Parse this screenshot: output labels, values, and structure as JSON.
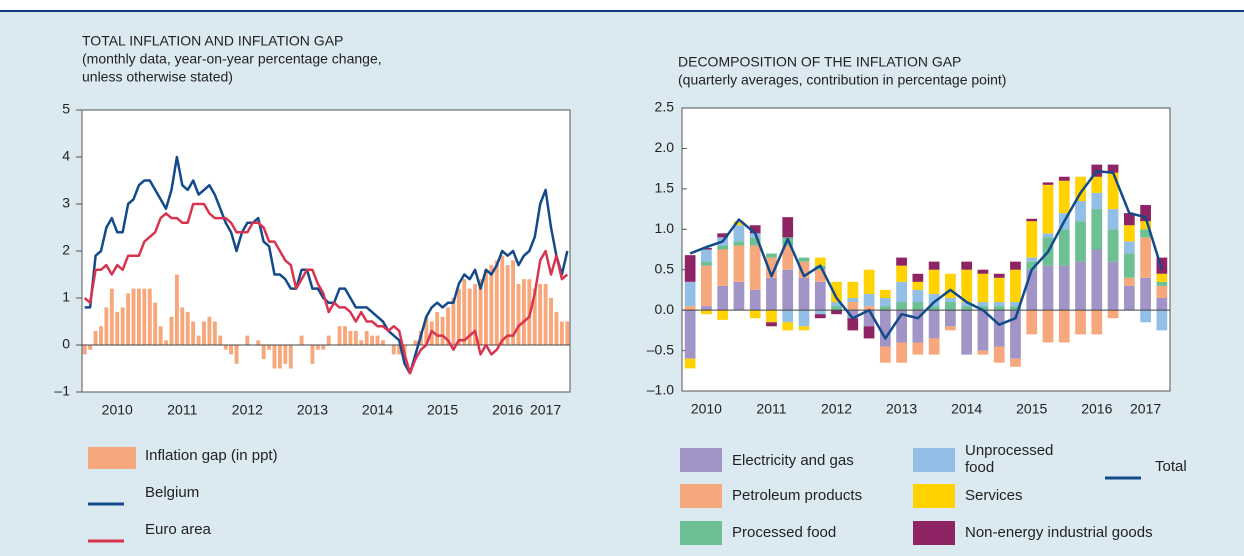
{
  "chart_data": [
    {
      "type": "combo",
      "title": "TOTAL INFLATION AND INFLATION GAP",
      "subtitle": [
        "(monthly data, year-on-year percentage change,",
        "unless otherwise stated)"
      ],
      "categories": [
        null,
        null,
        null,
        null,
        null,
        null,
        "2010",
        null,
        null,
        null,
        null,
        null,
        null,
        null,
        null,
        null,
        null,
        null,
        "2011",
        null,
        null,
        null,
        null,
        null,
        null,
        null,
        null,
        null,
        null,
        null,
        "2012",
        null,
        null,
        null,
        null,
        null,
        null,
        null,
        null,
        null,
        null,
        null,
        "2013",
        null,
        null,
        null,
        null,
        null,
        null,
        null,
        null,
        null,
        null,
        null,
        "2014",
        null,
        null,
        null,
        null,
        null,
        null,
        null,
        null,
        null,
        null,
        null,
        "2015",
        null,
        null,
        null,
        null,
        null,
        null,
        null,
        null,
        null,
        null,
        null,
        "2016",
        null,
        null,
        null,
        null,
        null,
        null,
        "2017",
        null,
        null,
        null,
        null
      ],
      "ylim": [
        -1,
        5
      ],
      "yticks": [
        {
          "value": -1,
          "label": "–1"
        },
        0,
        1,
        2,
        3,
        4,
        5
      ],
      "series": [
        {
          "name": "Inflation gap (in ppt)",
          "kind": "bar",
          "color": "#f7a77c",
          "values": [
            -0.2,
            -0.1,
            0.3,
            0.4,
            0.8,
            1.2,
            0.7,
            0.8,
            1.1,
            1.2,
            1.2,
            1.2,
            1.2,
            0.9,
            0.4,
            0.1,
            0.6,
            1.5,
            0.8,
            0.7,
            0.5,
            0.2,
            0.5,
            0.6,
            0.5,
            0.2,
            -0.1,
            -0.2,
            -0.4,
            0.0,
            0.2,
            0.0,
            0.1,
            -0.3,
            -0.1,
            -0.5,
            -0.5,
            -0.4,
            -0.5,
            0.0,
            0.2,
            0.0,
            -0.4,
            -0.1,
            -0.1,
            0.2,
            0.0,
            0.4,
            0.4,
            0.3,
            0.3,
            0.1,
            0.3,
            0.2,
            0.2,
            0.1,
            0.0,
            -0.2,
            -0.2,
            -0.2,
            0.0,
            0.1,
            0.3,
            0.6,
            0.5,
            0.7,
            0.6,
            0.8,
            1.0,
            1.2,
            1.4,
            1.2,
            1.3,
            1.4,
            1.6,
            1.7,
            1.8,
            1.9,
            1.7,
            1.8,
            1.3,
            1.4,
            1.4,
            1.2,
            1.3,
            1.3,
            1.0,
            0.7,
            0.5,
            0.5
          ]
        },
        {
          "name": "Belgium",
          "kind": "line",
          "color": "#124a8a",
          "values": [
            0.8,
            0.8,
            1.9,
            2.0,
            2.5,
            2.7,
            2.4,
            2.4,
            3.0,
            3.1,
            3.4,
            3.5,
            3.5,
            3.3,
            3.1,
            2.9,
            3.3,
            4.0,
            3.4,
            3.3,
            3.5,
            3.2,
            3.3,
            3.4,
            3.2,
            2.9,
            2.6,
            2.4,
            2.0,
            2.4,
            2.6,
            2.6,
            2.7,
            2.2,
            2.1,
            1.5,
            1.5,
            1.4,
            1.2,
            1.2,
            1.6,
            1.6,
            1.2,
            1.2,
            1.0,
            0.9,
            0.9,
            1.2,
            1.2,
            1.0,
            0.8,
            0.8,
            0.8,
            0.7,
            0.6,
            0.5,
            0.3,
            0.2,
            0.1,
            -0.4,
            -0.6,
            -0.2,
            0.2,
            0.6,
            0.8,
            0.9,
            0.8,
            0.9,
            0.9,
            1.3,
            1.5,
            1.4,
            1.6,
            1.2,
            1.6,
            1.5,
            1.7,
            2.0,
            1.9,
            2.0,
            1.7,
            1.9,
            2.0,
            2.3,
            3.0,
            3.3,
            2.5,
            1.9,
            1.5,
            2.0
          ]
        },
        {
          "name": "Euro area",
          "kind": "line",
          "color": "#d9344f",
          "values": [
            1.0,
            0.9,
            1.6,
            1.6,
            1.7,
            1.5,
            1.7,
            1.6,
            1.9,
            1.9,
            1.9,
            2.2,
            2.3,
            2.4,
            2.7,
            2.8,
            2.7,
            2.7,
            2.6,
            2.6,
            3.0,
            3.0,
            3.0,
            2.8,
            2.7,
            2.7,
            2.7,
            2.6,
            2.4,
            2.4,
            2.4,
            2.6,
            2.6,
            2.5,
            2.2,
            2.2,
            2.0,
            1.8,
            1.7,
            1.2,
            1.4,
            1.6,
            1.6,
            1.3,
            1.1,
            0.7,
            0.9,
            0.8,
            0.8,
            0.7,
            0.5,
            0.7,
            0.5,
            0.5,
            0.4,
            0.4,
            0.3,
            0.4,
            0.3,
            -0.2,
            -0.6,
            -0.3,
            -0.1,
            0.0,
            0.3,
            0.2,
            0.2,
            0.1,
            -0.1,
            0.1,
            0.1,
            0.2,
            0.3,
            -0.2,
            0.0,
            -0.2,
            -0.1,
            0.1,
            0.2,
            0.2,
            0.4,
            0.5,
            0.6,
            1.1,
            1.8,
            2.0,
            1.5,
            1.9,
            1.4,
            1.5
          ]
        }
      ]
    },
    {
      "type": "stacked",
      "title": "DECOMPOSITION OF THE INFLATION GAP",
      "subtitle": [
        "(quarterly averages, contribution in percentage point)"
      ],
      "categories": [
        null,
        "2010",
        null,
        null,
        null,
        "2011",
        null,
        null,
        null,
        "2012",
        null,
        null,
        null,
        "2013",
        null,
        null,
        null,
        "2014",
        null,
        null,
        null,
        "2015",
        null,
        null,
        null,
        "2016",
        null,
        null,
        "2017",
        null
      ],
      "ylim": [
        -1,
        2.5
      ],
      "yticks": [
        {
          "value": -1,
          "label": "–1.0"
        },
        {
          "value": -0.5,
          "label": "–0.5"
        },
        {
          "value": 0,
          "label": "0.0"
        },
        0.5,
        {
          "value": 1,
          "label": "1.0"
        },
        1.5,
        {
          "value": 2,
          "label": "2.0"
        },
        2.5
      ],
      "series": [
        {
          "name": "Electricity and gas",
          "kind": "bar",
          "color": "#a194c6",
          "values": [
            -0.6,
            0.05,
            0.3,
            0.35,
            0.25,
            0.4,
            0.5,
            0.4,
            0.35,
            0.0,
            -0.1,
            -0.2,
            -0.45,
            -0.4,
            -0.4,
            -0.35,
            -0.2,
            -0.55,
            -0.5,
            -0.45,
            -0.6,
            0.5,
            0.55,
            0.55,
            0.6,
            0.75,
            0.6,
            0.3,
            0.4,
            0.15
          ]
        },
        {
          "name": "Petroleum products",
          "kind": "bar",
          "color": "#f7a77c",
          "values": [
            0.05,
            0.5,
            0.45,
            0.45,
            0.55,
            0.25,
            0.3,
            0.2,
            0.15,
            0.0,
            0.1,
            0.05,
            -0.2,
            -0.25,
            -0.15,
            -0.2,
            -0.05,
            0.0,
            -0.05,
            -0.2,
            -0.1,
            -0.3,
            -0.4,
            -0.4,
            -0.3,
            -0.3,
            -0.1,
            0.1,
            0.5,
            0.15
          ]
        },
        {
          "name": "Processed food",
          "kind": "bar",
          "color": "#6cc093",
          "values": [
            0.0,
            0.05,
            0.05,
            0.05,
            0.1,
            0.05,
            0.1,
            0.05,
            0.05,
            0.05,
            0.0,
            0.0,
            0.05,
            0.1,
            0.1,
            0.05,
            0.1,
            0.05,
            0.05,
            0.05,
            0.05,
            0.1,
            0.35,
            0.45,
            0.5,
            0.5,
            0.4,
            0.3,
            0.1,
            0.05
          ]
        },
        {
          "name": "Unprocessed food",
          "kind": "bar",
          "color": "#93bee6",
          "values": [
            0.3,
            0.15,
            0.1,
            0.2,
            0.05,
            0.0,
            -0.15,
            -0.2,
            -0.05,
            0.05,
            0.05,
            0.15,
            0.1,
            0.25,
            0.15,
            0.15,
            0.05,
            0.05,
            0.05,
            0.05,
            0.05,
            0.05,
            0.05,
            0.2,
            0.25,
            0.2,
            0.25,
            0.15,
            -0.15,
            -0.25
          ]
        },
        {
          "name": "Services",
          "kind": "bar",
          "color": "#ffd200",
          "values": [
            -0.12,
            -0.05,
            -0.12,
            0.05,
            -0.1,
            -0.15,
            -0.1,
            -0.05,
            0.1,
            0.25,
            0.2,
            0.3,
            0.1,
            0.2,
            0.1,
            0.3,
            0.3,
            0.4,
            0.35,
            0.3,
            0.4,
            0.45,
            0.6,
            0.4,
            0.3,
            0.2,
            0.45,
            0.2,
            0.1,
            0.1
          ]
        },
        {
          "name": "Non-energy industrial goods",
          "kind": "bar",
          "color": "#8e2463",
          "values": [
            0.33,
            0.02,
            0.05,
            0.0,
            0.1,
            -0.05,
            0.25,
            0.0,
            -0.05,
            -0.05,
            -0.15,
            -0.15,
            0.0,
            0.1,
            0.1,
            0.1,
            0.0,
            0.1,
            0.05,
            0.05,
            0.1,
            0.03,
            0.03,
            0.05,
            0.0,
            0.15,
            0.1,
            0.15,
            0.2,
            0.2
          ]
        },
        {
          "name": "Total",
          "kind": "line",
          "color": "#124a8a",
          "values": [
            0.7,
            0.78,
            0.85,
            1.12,
            0.95,
            0.42,
            0.88,
            0.42,
            0.55,
            0.15,
            -0.1,
            0.0,
            -0.35,
            -0.05,
            -0.1,
            0.1,
            0.25,
            0.1,
            0.0,
            -0.18,
            -0.1,
            0.5,
            0.72,
            1.1,
            1.45,
            1.72,
            1.7,
            1.2,
            1.15,
            0.5
          ]
        }
      ]
    }
  ]
}
